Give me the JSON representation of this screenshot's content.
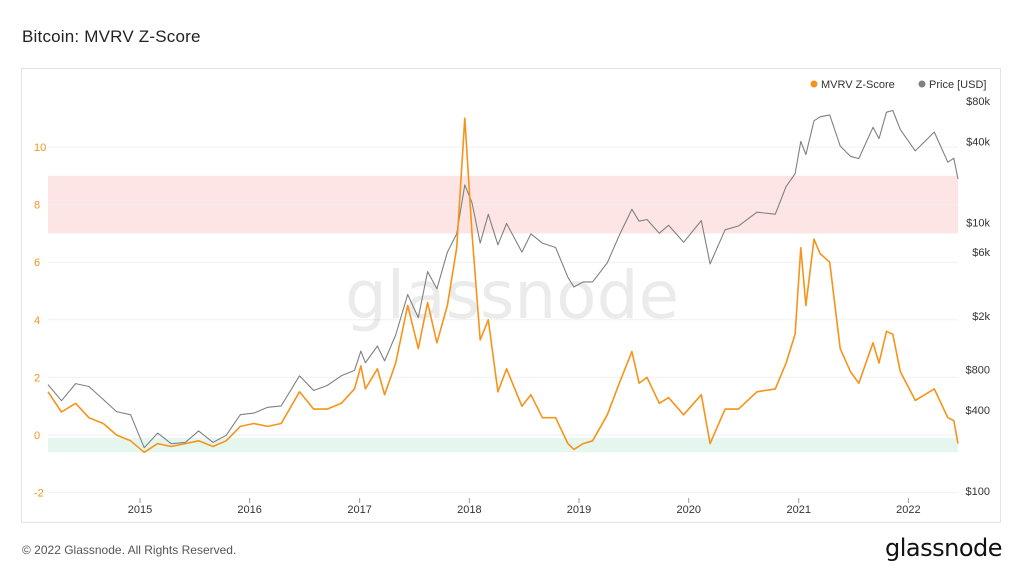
{
  "header": {
    "title": "Bitcoin: MVRV Z-Score"
  },
  "footer": {
    "copyright": "© 2022 Glassnode. All Rights Reserved.",
    "logo": "glassnode"
  },
  "watermark": "glassnode",
  "colors": {
    "zscore": "#f7931a",
    "price": "#808080",
    "upper_band": "#fde5e5",
    "lower_band": "#e4f6ee"
  },
  "chart_data": {
    "type": "line",
    "title": "Bitcoin: MVRV Z-Score",
    "x_ticks": [
      "2015",
      "2016",
      "2017",
      "2018",
      "2019",
      "2020",
      "2021",
      "2022"
    ],
    "x_range": [
      "2014-03-01",
      "2022-06-15"
    ],
    "y_left": {
      "ticks": [
        "10",
        "8",
        "6",
        "4",
        "2",
        "0",
        "-2"
      ],
      "range": [
        -2,
        11.5
      ]
    },
    "y_right": {
      "scale": "log",
      "ticks": [
        "$80k",
        "$40k",
        "$10k",
        "$6k",
        "$2k",
        "$800",
        "$400",
        "$100"
      ],
      "range": [
        100,
        80000
      ]
    },
    "bands": [
      {
        "axis": "left",
        "from": 7,
        "to": 9,
        "color": "#fde5e5"
      },
      {
        "axis": "left",
        "from": -0.6,
        "to": -0.1,
        "color": "#e4f6ee"
      }
    ],
    "legend": {
      "placement": "top-right"
    },
    "series": [
      {
        "name": "MVRV Z-Score",
        "axis": "left",
        "color": "#f7931a",
        "points": [
          [
            "2014-03-01",
            1.5
          ],
          [
            "2014-04-15",
            0.8
          ],
          [
            "2014-06-01",
            1.1
          ],
          [
            "2014-07-15",
            0.6
          ],
          [
            "2014-09-01",
            0.4
          ],
          [
            "2014-10-15",
            0.0
          ],
          [
            "2014-12-01",
            -0.2
          ],
          [
            "2015-01-15",
            -0.6
          ],
          [
            "2015-03-01",
            -0.3
          ],
          [
            "2015-04-15",
            -0.4
          ],
          [
            "2015-06-01",
            -0.3
          ],
          [
            "2015-07-15",
            -0.2
          ],
          [
            "2015-09-01",
            -0.4
          ],
          [
            "2015-10-15",
            -0.2
          ],
          [
            "2015-12-01",
            0.3
          ],
          [
            "2016-01-15",
            0.4
          ],
          [
            "2016-03-01",
            0.3
          ],
          [
            "2016-04-15",
            0.4
          ],
          [
            "2016-06-15",
            1.5
          ],
          [
            "2016-08-01",
            0.9
          ],
          [
            "2016-09-15",
            0.9
          ],
          [
            "2016-11-01",
            1.1
          ],
          [
            "2016-12-15",
            1.6
          ],
          [
            "2017-01-05",
            2.4
          ],
          [
            "2017-01-20",
            1.6
          ],
          [
            "2017-03-01",
            2.3
          ],
          [
            "2017-03-25",
            1.4
          ],
          [
            "2017-05-01",
            2.5
          ],
          [
            "2017-06-10",
            4.5
          ],
          [
            "2017-07-15",
            3.0
          ],
          [
            "2017-08-15",
            4.6
          ],
          [
            "2017-09-15",
            3.2
          ],
          [
            "2017-10-20",
            4.5
          ],
          [
            "2017-11-20",
            6.5
          ],
          [
            "2017-12-17",
            11.0
          ],
          [
            "2018-01-10",
            7.0
          ],
          [
            "2018-02-06",
            3.3
          ],
          [
            "2018-03-05",
            4.0
          ],
          [
            "2018-04-06",
            1.5
          ],
          [
            "2018-05-05",
            2.3
          ],
          [
            "2018-06-25",
            1.0
          ],
          [
            "2018-07-25",
            1.4
          ],
          [
            "2018-09-01",
            0.6
          ],
          [
            "2018-10-15",
            0.6
          ],
          [
            "2018-11-25",
            -0.3
          ],
          [
            "2018-12-15",
            -0.5
          ],
          [
            "2019-01-15",
            -0.3
          ],
          [
            "2019-02-15",
            -0.2
          ],
          [
            "2019-04-05",
            0.7
          ],
          [
            "2019-05-15",
            1.8
          ],
          [
            "2019-06-26",
            2.9
          ],
          [
            "2019-07-20",
            1.8
          ],
          [
            "2019-08-15",
            2.0
          ],
          [
            "2019-09-25",
            1.1
          ],
          [
            "2019-10-26",
            1.3
          ],
          [
            "2019-12-15",
            0.7
          ],
          [
            "2020-02-12",
            1.4
          ],
          [
            "2020-03-12",
            -0.3
          ],
          [
            "2020-05-01",
            0.9
          ],
          [
            "2020-06-15",
            0.9
          ],
          [
            "2020-08-15",
            1.5
          ],
          [
            "2020-10-15",
            1.6
          ],
          [
            "2020-11-20",
            2.5
          ],
          [
            "2020-12-20",
            3.5
          ],
          [
            "2021-01-08",
            6.5
          ],
          [
            "2021-01-25",
            4.5
          ],
          [
            "2021-02-21",
            6.8
          ],
          [
            "2021-03-13",
            6.3
          ],
          [
            "2021-04-14",
            6.0
          ],
          [
            "2021-05-19",
            3.0
          ],
          [
            "2021-06-22",
            2.2
          ],
          [
            "2021-07-20",
            1.8
          ],
          [
            "2021-09-05",
            3.2
          ],
          [
            "2021-09-25",
            2.5
          ],
          [
            "2021-10-20",
            3.6
          ],
          [
            "2021-11-10",
            3.5
          ],
          [
            "2021-12-05",
            2.2
          ],
          [
            "2022-01-24",
            1.2
          ],
          [
            "2022-03-28",
            1.6
          ],
          [
            "2022-05-12",
            0.6
          ],
          [
            "2022-06-01",
            0.5
          ],
          [
            "2022-06-15",
            -0.3
          ]
        ]
      },
      {
        "name": "Price [USD]",
        "axis": "right",
        "color": "#808080",
        "points": [
          [
            "2014-03-01",
            620
          ],
          [
            "2014-04-15",
            470
          ],
          [
            "2014-06-01",
            630
          ],
          [
            "2014-07-15",
            600
          ],
          [
            "2014-09-01",
            480
          ],
          [
            "2014-10-15",
            390
          ],
          [
            "2014-12-01",
            370
          ],
          [
            "2015-01-15",
            210
          ],
          [
            "2015-03-01",
            270
          ],
          [
            "2015-04-15",
            225
          ],
          [
            "2015-06-01",
            230
          ],
          [
            "2015-07-15",
            280
          ],
          [
            "2015-09-01",
            230
          ],
          [
            "2015-10-15",
            260
          ],
          [
            "2015-12-01",
            370
          ],
          [
            "2016-01-15",
            380
          ],
          [
            "2016-03-01",
            420
          ],
          [
            "2016-04-15",
            430
          ],
          [
            "2016-06-15",
            720
          ],
          [
            "2016-08-01",
            560
          ],
          [
            "2016-09-15",
            610
          ],
          [
            "2016-11-01",
            720
          ],
          [
            "2016-12-15",
            790
          ],
          [
            "2017-01-05",
            1100
          ],
          [
            "2017-01-20",
            900
          ],
          [
            "2017-03-01",
            1200
          ],
          [
            "2017-03-25",
            930
          ],
          [
            "2017-05-01",
            1450
          ],
          [
            "2017-06-10",
            2900
          ],
          [
            "2017-07-15",
            1950
          ],
          [
            "2017-08-15",
            4300
          ],
          [
            "2017-09-15",
            3200
          ],
          [
            "2017-10-20",
            6000
          ],
          [
            "2017-11-20",
            8200
          ],
          [
            "2017-12-17",
            19000
          ],
          [
            "2018-01-10",
            14000
          ],
          [
            "2018-02-06",
            7000
          ],
          [
            "2018-03-05",
            11500
          ],
          [
            "2018-04-06",
            6800
          ],
          [
            "2018-05-05",
            9800
          ],
          [
            "2018-06-25",
            6000
          ],
          [
            "2018-07-25",
            8200
          ],
          [
            "2018-09-01",
            7000
          ],
          [
            "2018-10-15",
            6500
          ],
          [
            "2018-11-25",
            3900
          ],
          [
            "2018-12-15",
            3300
          ],
          [
            "2019-01-15",
            3600
          ],
          [
            "2019-02-15",
            3600
          ],
          [
            "2019-04-05",
            5000
          ],
          [
            "2019-05-15",
            8000
          ],
          [
            "2019-06-26",
            12500
          ],
          [
            "2019-07-20",
            10200
          ],
          [
            "2019-08-15",
            10500
          ],
          [
            "2019-09-25",
            8300
          ],
          [
            "2019-10-26",
            9500
          ],
          [
            "2019-12-15",
            7100
          ],
          [
            "2020-02-12",
            10300
          ],
          [
            "2020-03-12",
            4900
          ],
          [
            "2020-05-01",
            8800
          ],
          [
            "2020-06-15",
            9400
          ],
          [
            "2020-08-15",
            11900
          ],
          [
            "2020-10-15",
            11500
          ],
          [
            "2020-11-20",
            18500
          ],
          [
            "2020-12-20",
            23000
          ],
          [
            "2021-01-08",
            40000
          ],
          [
            "2021-01-25",
            32000
          ],
          [
            "2021-02-21",
            57000
          ],
          [
            "2021-03-13",
            61000
          ],
          [
            "2021-04-14",
            63000
          ],
          [
            "2021-05-19",
            37000
          ],
          [
            "2021-06-22",
            31000
          ],
          [
            "2021-07-20",
            29800
          ],
          [
            "2021-09-05",
            51000
          ],
          [
            "2021-09-25",
            42000
          ],
          [
            "2021-10-20",
            66000
          ],
          [
            "2021-11-10",
            68000
          ],
          [
            "2021-12-05",
            49000
          ],
          [
            "2022-01-24",
            34000
          ],
          [
            "2022-03-28",
            47000
          ],
          [
            "2022-05-12",
            28000
          ],
          [
            "2022-06-01",
            30000
          ],
          [
            "2022-06-15",
            21000
          ]
        ]
      }
    ]
  }
}
